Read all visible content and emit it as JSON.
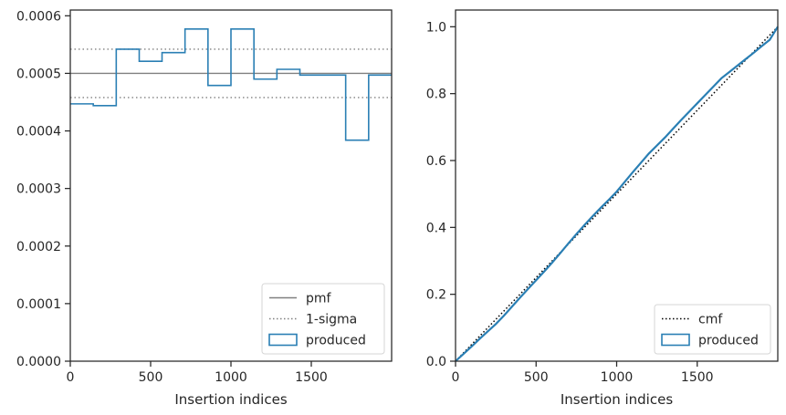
{
  "chart_data": [
    {
      "type": "histogram-step",
      "xlabel": "Insertion indices",
      "ylabel": "",
      "xlim": [
        0,
        2000
      ],
      "ylim": [
        0,
        0.00061
      ],
      "xticks": [
        0,
        500,
        1000,
        1500
      ],
      "xtick_labels": [
        "0",
        "500",
        "1000",
        "1500"
      ],
      "yticks": [
        0,
        0.0001,
        0.0002,
        0.0003,
        0.0004,
        0.0005,
        0.0006
      ],
      "ytick_labels": [
        "0.0000",
        "0.0001",
        "0.0002",
        "0.0003",
        "0.0004",
        "0.0005",
        "0.0006"
      ],
      "grid": false,
      "legend_position": "lower right",
      "hlines": [
        {
          "name": "pmf",
          "y": 0.0005,
          "style": "solid",
          "color": "#808080"
        },
        {
          "name": "1-sigma",
          "y": 0.000542,
          "style": "dotted",
          "color": "#808080"
        },
        {
          "name": "1-sigma",
          "y": 0.000458,
          "style": "dotted",
          "color": "#808080"
        }
      ],
      "series": [
        {
          "name": "produced",
          "color": "#2a7fb4",
          "bin_edges": [
            0,
            143,
            286,
            429,
            571,
            714,
            857,
            1000,
            1143,
            1286,
            1429,
            1571,
            1714,
            1857,
            2000
          ],
          "values": [
            0.000447,
            0.000444,
            0.000542,
            0.000521,
            0.000536,
            0.000577,
            0.000479,
            0.000577,
            0.00049,
            0.000507,
            0.000497,
            0.000497,
            0.000384,
            0.000497
          ]
        }
      ],
      "legend": [
        {
          "label": "pmf",
          "kind": "solid-line",
          "color": "#808080"
        },
        {
          "label": "1-sigma",
          "kind": "dotted-line",
          "color": "#808080"
        },
        {
          "label": "produced",
          "kind": "patch",
          "color": "#2a7fb4"
        }
      ]
    },
    {
      "type": "line",
      "xlabel": "Insertion indices",
      "ylabel": "",
      "xlim": [
        0,
        2000
      ],
      "ylim": [
        0,
        1.05
      ],
      "xticks": [
        0,
        500,
        1000,
        1500
      ],
      "xtick_labels": [
        "0",
        "500",
        "1000",
        "1500"
      ],
      "yticks": [
        0,
        0.2,
        0.4,
        0.6,
        0.8,
        1.0
      ],
      "ytick_labels": [
        "0.0",
        "0.2",
        "0.4",
        "0.6",
        "0.8",
        "1.0"
      ],
      "grid": false,
      "legend_position": "lower right",
      "series": [
        {
          "name": "cmf",
          "style": "dotted",
          "color": "#000000",
          "x": [
            0,
            2000
          ],
          "y": [
            0,
            1.0
          ]
        },
        {
          "name": "produced",
          "style": "solid",
          "color": "#2a7fb4",
          "x": [
            0,
            50,
            100,
            150,
            200,
            250,
            300,
            350,
            400,
            450,
            500,
            550,
            600,
            650,
            700,
            750,
            800,
            850,
            900,
            950,
            1000,
            1050,
            1100,
            1150,
            1200,
            1250,
            1300,
            1350,
            1400,
            1450,
            1500,
            1550,
            1600,
            1650,
            1700,
            1750,
            1800,
            1850,
            1900,
            1950,
            2000
          ],
          "y": [
            0,
            0.022,
            0.044,
            0.067,
            0.089,
            0.111,
            0.136,
            0.163,
            0.19,
            0.216,
            0.242,
            0.268,
            0.295,
            0.323,
            0.352,
            0.38,
            0.407,
            0.433,
            0.458,
            0.482,
            0.507,
            0.536,
            0.565,
            0.593,
            0.621,
            0.645,
            0.669,
            0.695,
            0.721,
            0.746,
            0.771,
            0.796,
            0.821,
            0.846,
            0.865,
            0.884,
            0.903,
            0.922,
            0.942,
            0.961,
            1.0
          ]
        }
      ],
      "legend": [
        {
          "label": "cmf",
          "kind": "dotted-line",
          "color": "#000000"
        },
        {
          "label": "produced",
          "kind": "patch",
          "color": "#2a7fb4"
        }
      ]
    }
  ]
}
